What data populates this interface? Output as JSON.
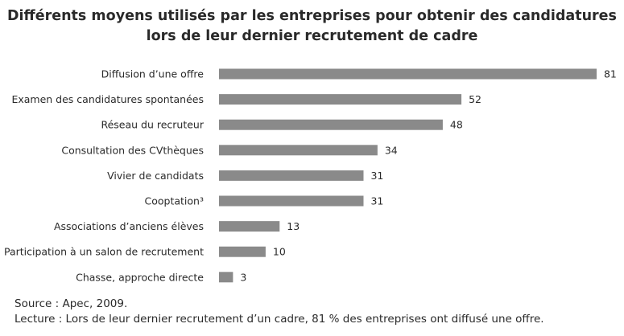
{
  "header": {
    "title_line1": "Différents moyens utilisés par les entreprises pour obtenir des candidatures",
    "title_line2": "lors de leur dernier recrutement de cadre"
  },
  "chart_data": {
    "type": "bar",
    "orientation": "horizontal",
    "title": "Différents moyens utilisés par les entreprises pour obtenir des candidatures lors de leur dernier recrutement de cadre",
    "xlabel": "",
    "ylabel": "",
    "categories": [
      "Diffusion d’une offre",
      "Examen des candidatures spontanées",
      "Réseau du recruteur",
      "Consultation des CVthèques",
      "Vivier de candidats",
      "Cooptation³",
      "Associations d’anciens élèves",
      "Participation à un salon de recrutement",
      "Chasse, approche directe"
    ],
    "values": [
      81,
      52,
      48,
      34,
      31,
      31,
      13,
      10,
      3
    ],
    "xlim": [
      0,
      100
    ],
    "grid": false,
    "legend": "none",
    "bar_color": "#8a8a8a"
  },
  "footer": {
    "source": "Source : Apec, 2009.",
    "reading": "Lecture : Lors de leur dernier recrutement d’un cadre, 81 % des entreprises ont diffusé une offre."
  }
}
